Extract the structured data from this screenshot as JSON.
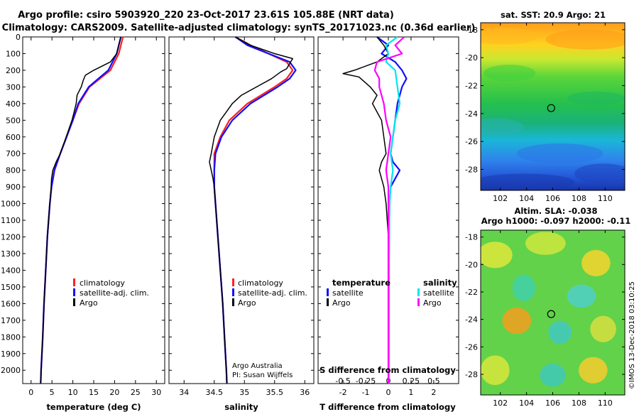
{
  "header": {
    "line1": "Argo profile: csiro 5903920_220 23-Oct-2017 23.61S 105.88E (NRT data)",
    "line2": "Climatology: CARS2009. Satellite-adjusted climatology: synTS_20171023.nc (0.36d earlier)"
  },
  "colors": {
    "climatology": "#ff2020",
    "satellite": "#1010ff",
    "argo": "#000000",
    "satellite_s": "#00e5ee",
    "argo_s": "#ff00ff"
  },
  "credits": {
    "line1": "Argo Australia",
    "line2": "PI: Susan Wijffels"
  },
  "watermark": "©IMOS 13-Dec-2018 03:10:25",
  "chart_data": [
    {
      "id": "temperature",
      "type": "line",
      "xlabel": "temperature (deg C)",
      "xlim": [
        -2,
        32
      ],
      "ylim": [
        0,
        2080
      ],
      "xticks": [
        0,
        5,
        10,
        15,
        20,
        25,
        30
      ],
      "yticks": [
        0,
        100,
        200,
        300,
        400,
        500,
        600,
        700,
        800,
        900,
        1000,
        1100,
        1200,
        1300,
        1400,
        1500,
        1600,
        1700,
        1800,
        1900,
        2000
      ],
      "legend": [
        "climatology",
        "satellite-adj. clim.",
        "Argo"
      ],
      "series": [
        {
          "name": "climatology",
          "color": "#ff2020",
          "depth": [
            0,
            100,
            200,
            300,
            400,
            500,
            600,
            700,
            800,
            900,
            1000,
            1200,
            1400,
            1600,
            1800,
            2000,
            2080
          ],
          "values": [
            22,
            21,
            19,
            14,
            11.5,
            10,
            8.5,
            7,
            5.6,
            4.9,
            4.5,
            3.9,
            3.5,
            3.1,
            2.8,
            2.4,
            2.3
          ]
        },
        {
          "name": "satellite-adj. clim.",
          "color": "#1010ff",
          "depth": [
            0,
            100,
            200,
            300,
            400,
            500,
            600,
            700,
            800,
            900,
            1000,
            1200,
            1400,
            1600,
            1800,
            2000,
            2080
          ],
          "values": [
            21.5,
            20.5,
            18.5,
            13.8,
            11.3,
            10,
            8.5,
            7,
            5.6,
            4.9,
            4.5,
            3.9,
            3.5,
            3.1,
            2.8,
            2.4,
            2.3
          ]
        },
        {
          "name": "Argo",
          "color": "#000000",
          "depth": [
            0,
            50,
            100,
            150,
            200,
            230,
            260,
            300,
            350,
            400,
            450,
            500,
            600,
            700,
            750,
            800,
            850,
            900,
            1000,
            1200,
            1400,
            1600,
            1800,
            2000,
            2080
          ],
          "values": [
            21.5,
            21,
            20.5,
            19,
            15,
            13,
            12.5,
            12,
            11,
            10.8,
            10.3,
            9.8,
            8.4,
            7,
            6,
            5.2,
            4.9,
            4.8,
            4.5,
            3.9,
            3.5,
            3.1,
            2.8,
            2.4,
            2.3
          ]
        }
      ]
    },
    {
      "id": "salinity",
      "type": "line",
      "xlabel": "salinity",
      "xlim": [
        33.75,
        36.15
      ],
      "ylim": [
        0,
        2080
      ],
      "xticks": [
        34,
        34.5,
        35,
        35.5,
        36
      ],
      "legend": [
        "climatology",
        "satellite-adj. clim.",
        "Argo"
      ],
      "series": [
        {
          "name": "climatology",
          "color": "#ff2020",
          "depth": [
            0,
            50,
            100,
            150,
            200,
            250,
            300,
            400,
            500,
            600,
            700,
            800,
            900,
            1000,
            1200,
            1400,
            1600,
            1800,
            2000,
            2080
          ],
          "values": [
            34.85,
            35.1,
            35.4,
            35.7,
            35.8,
            35.7,
            35.5,
            35.05,
            34.75,
            34.6,
            34.5,
            34.5,
            34.5,
            34.52,
            34.56,
            34.6,
            34.64,
            34.67,
            34.7,
            34.71
          ]
        },
        {
          "name": "satellite-adj. clim.",
          "color": "#1010ff",
          "depth": [
            0,
            50,
            100,
            150,
            200,
            250,
            300,
            400,
            500,
            600,
            700,
            800,
            900,
            1000,
            1200,
            1400,
            1600,
            1800,
            2000,
            2080
          ],
          "values": [
            34.85,
            35.05,
            35.4,
            35.75,
            35.85,
            35.75,
            35.55,
            35.1,
            34.8,
            34.62,
            34.52,
            34.5,
            34.5,
            34.52,
            34.56,
            34.6,
            34.64,
            34.67,
            34.7,
            34.71
          ]
        },
        {
          "name": "Argo",
          "color": "#000000",
          "depth": [
            0,
            50,
            100,
            130,
            160,
            190,
            210,
            250,
            300,
            350,
            400,
            450,
            500,
            600,
            700,
            750,
            800,
            850,
            900,
            1000,
            1200,
            1400,
            1600,
            1800,
            2000,
            2080
          ],
          "values": [
            34.85,
            35.1,
            35.5,
            35.8,
            35.75,
            35.7,
            35.6,
            35.45,
            35.2,
            34.95,
            34.8,
            34.7,
            34.6,
            34.5,
            34.45,
            34.42,
            34.45,
            34.48,
            34.5,
            34.52,
            34.56,
            34.6,
            34.64,
            34.67,
            34.7,
            34.71
          ]
        }
      ]
    },
    {
      "id": "differences",
      "type": "line",
      "xlabel": "T difference from climatology",
      "top_xlabel": "S difference from climatology",
      "xlim": [
        -3.1,
        3.1
      ],
      "ylim": [
        0,
        2080
      ],
      "xticks": [
        -2,
        -1,
        0,
        1,
        2
      ],
      "top_xticks": [
        {
          "pos": -2,
          "label": "-0.5"
        },
        {
          "pos": -1,
          "label": "-0.25"
        },
        {
          "pos": 0,
          "label": "0"
        },
        {
          "pos": 1,
          "label": "0.25"
        },
        {
          "pos": 2,
          "label": "0.5"
        }
      ],
      "legend_left_title": "temperature",
      "legend_right_title": "salinity",
      "legend_left": [
        "satellite",
        "Argo"
      ],
      "legend_right": [
        "satellite",
        "Argo"
      ],
      "series": [
        {
          "name": "temperature satellite",
          "color": "#1010ff",
          "depth": [
            0,
            50,
            100,
            150,
            200,
            250,
            300,
            400,
            500,
            600,
            700,
            750,
            800,
            900,
            1000,
            1500,
            2000,
            2080
          ],
          "values": [
            -0.5,
            0,
            -0.3,
            0.3,
            0.6,
            0.8,
            0.6,
            0.4,
            0.3,
            0.2,
            0.1,
            0.2,
            0.5,
            0.1,
            0.05,
            0.02,
            0.02,
            0.02
          ]
        },
        {
          "name": "temperature Argo",
          "color": "#000000",
          "depth": [
            0,
            50,
            100,
            150,
            200,
            220,
            240,
            300,
            350,
            400,
            450,
            500,
            600,
            700,
            750,
            800,
            850,
            900,
            1000,
            1200,
            1500,
            2000,
            2080
          ],
          "values": [
            -0.5,
            -0.2,
            0,
            -0.5,
            -1.5,
            -2,
            -1.3,
            -0.8,
            -0.5,
            -0.7,
            -0.5,
            -0.3,
            -0.2,
            -0.1,
            -0.3,
            -0.4,
            -0.3,
            -0.2,
            -0.1,
            0,
            0,
            0,
            0
          ]
        },
        {
          "name": "salinity satellite",
          "color": "#00e5ee",
          "depth": [
            0,
            50,
            100,
            150,
            200,
            300,
            400,
            500,
            600,
            700,
            800,
            900,
            1000,
            1500,
            2000,
            2080
          ],
          "values": [
            0.4,
            -0.1,
            0,
            -0.1,
            0.3,
            0.4,
            0.5,
            0.3,
            0.2,
            0.1,
            0.2,
            0.1,
            0.05,
            0.02,
            0.02,
            0.02
          ]
        },
        {
          "name": "salinity Argo",
          "color": "#ff00ff",
          "depth": [
            0,
            50,
            100,
            150,
            200,
            250,
            300,
            400,
            500,
            600,
            700,
            800,
            900,
            1000,
            1500,
            2000,
            2080
          ],
          "values": [
            0.7,
            0.3,
            0.6,
            -0.5,
            -0.6,
            -0.4,
            -0.4,
            -0.2,
            -0.1,
            0.1,
            0,
            -0.1,
            0,
            0,
            0,
            0,
            0
          ]
        }
      ]
    },
    {
      "id": "sst_map",
      "type": "heatmap",
      "title": "sat. SST: 20.9 Argo: 21",
      "xlim": [
        100.5,
        111.5
      ],
      "ylim": [
        -29.5,
        -17.5
      ],
      "xticks": [
        102,
        104,
        106,
        108,
        110
      ],
      "yticks": [
        -18,
        -20,
        -22,
        -24,
        -26,
        -28
      ],
      "marker": {
        "lon": 105.88,
        "lat": -23.61
      }
    },
    {
      "id": "sla_map",
      "type": "heatmap",
      "title_line1": "Altim. SLA: -0.038",
      "title_line2": "Argo h1000: -0.097 h2000: -0.11",
      "xlim": [
        100.5,
        111.5
      ],
      "ylim": [
        -29.5,
        -17.5
      ],
      "xticks": [
        102,
        104,
        106,
        108,
        110
      ],
      "yticks": [
        -18,
        -20,
        -22,
        -24,
        -26,
        -28
      ],
      "marker": {
        "lon": 105.88,
        "lat": -23.61
      }
    }
  ]
}
